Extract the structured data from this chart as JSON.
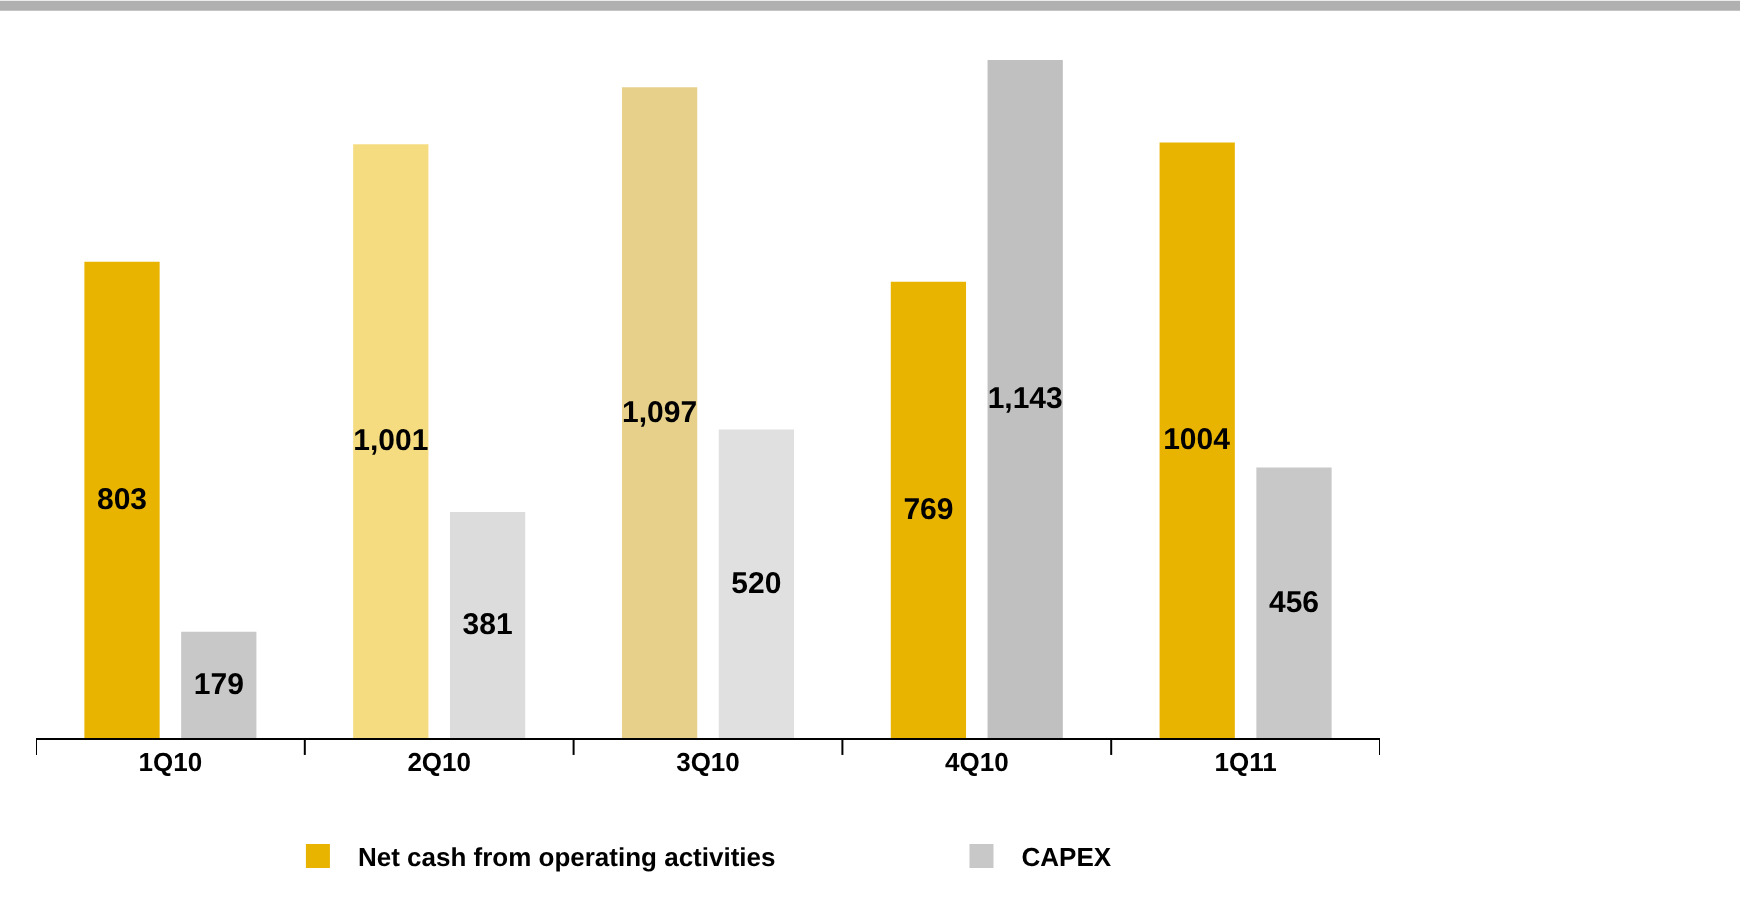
{
  "chart_data": {
    "type": "bar",
    "categories": [
      "1Q10",
      "2Q10",
      "3Q10",
      "4Q10",
      "1Q11"
    ],
    "series": [
      {
        "name": "Net cash from operating activities",
        "colors": [
          "#e8b400",
          "#f5dc80",
          "#e6d08a",
          "#e8b400",
          "#e8b400"
        ],
        "values": [
          803,
          1001,
          1097,
          769,
          1004
        ],
        "value_labels": [
          "803",
          "1,001",
          "1,097",
          "769",
          "1004"
        ]
      },
      {
        "name": "CAPEX",
        "colors": [
          "#c8c8c8",
          "#dcdcdc",
          "#e0e0e0",
          "#c0c0c0",
          "#c8c8c8"
        ],
        "values": [
          179,
          381,
          520,
          1143,
          456
        ],
        "value_labels": [
          "179",
          "381",
          "520",
          "1,143",
          "456"
        ]
      }
    ],
    "legend": "bottom"
  }
}
